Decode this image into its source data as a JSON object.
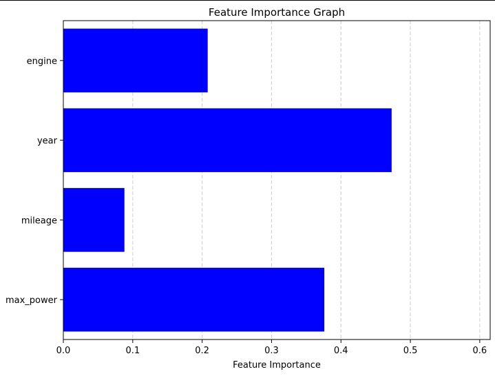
{
  "chart_data": {
    "type": "bar",
    "orientation": "horizontal",
    "title": "Feature Importance Graph",
    "xlabel": "Feature Importance",
    "ylabel": "",
    "categories": [
      "max_power",
      "mileage",
      "year",
      "engine"
    ],
    "values": [
      0.376,
      0.088,
      0.473,
      0.208
    ],
    "xlim": [
      0.0,
      0.615
    ],
    "xticks": [
      0.0,
      0.1,
      0.2,
      0.3,
      0.4,
      0.5,
      0.6
    ],
    "xtick_labels": [
      "0.0",
      "0.1",
      "0.2",
      "0.3",
      "0.4",
      "0.5",
      "0.6"
    ],
    "grid": "x-dashed",
    "colors": {
      "bar": "#0000ff",
      "grid": "#cccccc",
      "axis": "#000000"
    }
  }
}
